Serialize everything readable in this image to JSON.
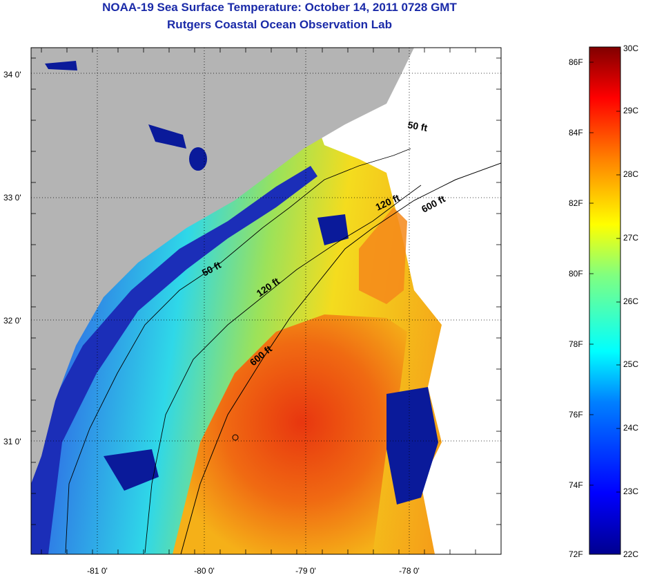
{
  "title": "NOAA-19 Sea Surface Temperature:  October 14, 2011 0728 GMT",
  "subtitle": "Rutgers Coastal Ocean Observation Lab",
  "map": {
    "lon_ticks": [
      "-81 0'",
      "-80 0'",
      "-79 0'",
      "-78 0'"
    ],
    "lat_ticks": [
      "34 0'",
      "33 0'",
      "32 0'",
      "31 0'"
    ],
    "contours": [
      {
        "label": "50 ft"
      },
      {
        "label": "120 ft"
      },
      {
        "label": "600 ft"
      },
      {
        "label": "50 ft"
      },
      {
        "label": "120 ft"
      },
      {
        "label": "600 ft"
      }
    ],
    "colors": {
      "land": "#b4b4b4",
      "cloud": "#ffffff",
      "cold": "#0a1f96",
      "warm": "#e8320f"
    }
  },
  "colorbar": {
    "fahrenheit_ticks": [
      "86F",
      "84F",
      "82F",
      "80F",
      "78F",
      "76F",
      "74F",
      "72F"
    ],
    "celsius_ticks": [
      "30C",
      "29C",
      "28C",
      "27C",
      "26C",
      "25C",
      "24C",
      "23C",
      "22C"
    ]
  }
}
